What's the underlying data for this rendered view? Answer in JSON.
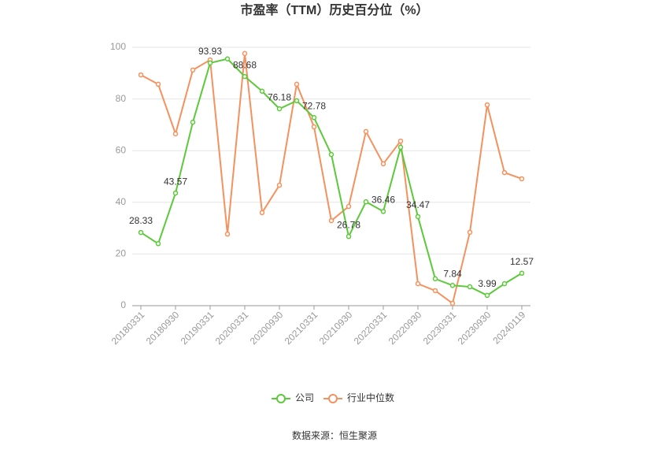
{
  "chart_data": {
    "type": "line",
    "title": "市盈率（TTM）历史百分位（%）",
    "categories": [
      "20180331",
      null,
      "20180930",
      null,
      "20190331",
      null,
      "20200331",
      null,
      "20200930",
      null,
      "20210331",
      null,
      "20210930",
      null,
      "20220331",
      null,
      "20220930",
      null,
      "20230331",
      null,
      "20230930",
      null,
      "20240119"
    ],
    "series": [
      {
        "name": "公司",
        "color": "#5cc93b",
        "values": [
          28.33,
          24,
          43.57,
          71,
          93.93,
          95.5,
          88.68,
          83,
          76.18,
          79.3,
          72.78,
          58.5,
          26.78,
          40.2,
          36.46,
          61.3,
          34.47,
          10.4,
          7.84,
          7.3,
          3.99,
          8.5,
          12.57
        ],
        "value_labels": [
          "28.33",
          null,
          "43.57",
          null,
          "93.93",
          null,
          "88.68",
          null,
          "76.18",
          null,
          "72.78",
          null,
          "26.78",
          null,
          "36.46",
          null,
          "34.47",
          null,
          "7.84",
          null,
          "3.99",
          null,
          "12.57"
        ]
      },
      {
        "name": "行业中位数",
        "color": "#f4915e",
        "values": [
          89.3,
          85.7,
          66.5,
          91.2,
          95.1,
          27.7,
          97.6,
          36,
          46.6,
          85.7,
          69.2,
          32.9,
          38.4,
          67.4,
          54.9,
          63.7,
          8.5,
          5.8,
          0.9,
          28.4,
          77.7,
          51.5,
          49.1
        ]
      }
    ],
    "ylim": [
      0,
      100
    ],
    "yticks": [
      0,
      20,
      40,
      60,
      80,
      100
    ],
    "grid": true,
    "legend": "bottom",
    "source": "数据来源：恒生聚源"
  }
}
